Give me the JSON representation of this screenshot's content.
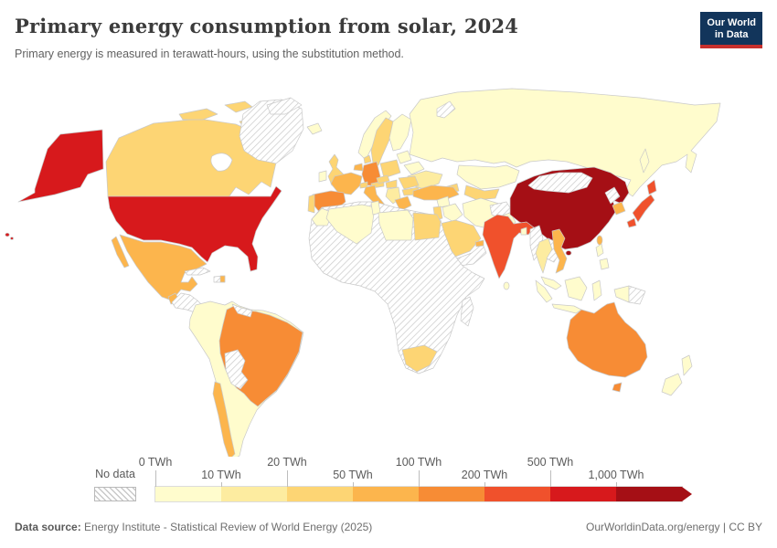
{
  "header": {
    "title": "Primary energy consumption from solar, 2024",
    "subtitle": "Primary energy is measured in terawatt-hours, using the substitution method.",
    "logo_line1": "Our World",
    "logo_line2": "in Data",
    "logo_bg": "#12355b",
    "logo_accent": "#c7302d"
  },
  "legend": {
    "no_data_label": "No data",
    "boundary_labels": [
      "0 TWh",
      "10 TWh",
      "20 TWh",
      "50 TWh",
      "100 TWh",
      "200 TWh",
      "500 TWh",
      "1,000 TWh"
    ],
    "bin_order": [
      "b0",
      "b10",
      "b20",
      "b50",
      "b100",
      "b200",
      "b500",
      "b1000"
    ],
    "bin_colors": {
      "b0": "#fffccd",
      "b10": "#fdeca0",
      "b20": "#fdd574",
      "b50": "#fcb54d",
      "b100": "#f78c35",
      "b200": "#f0512c",
      "b500": "#d7191c",
      "b1000": "#a50f15"
    }
  },
  "footer": {
    "source_prefix": "Data source:",
    "source_text": " Energy Institute - Statistical Review of World Energy (2025)",
    "link_text": "OurWorldinData.org/energy",
    "divider": " | ",
    "license": "CC BY"
  },
  "chart_data": {
    "type": "choropleth",
    "title": "Primary energy consumption from solar, 2024",
    "subtitle": "Primary energy is measured in terawatt-hours, using the substitution method.",
    "unit": "TWh",
    "legend_position": "bottom",
    "bins": [
      {
        "id": "b0",
        "range": "0-10 TWh",
        "color": "#fffccd"
      },
      {
        "id": "b10",
        "range": "10-20 TWh",
        "color": "#fdeca0"
      },
      {
        "id": "b20",
        "range": "20-50 TWh",
        "color": "#fdd574"
      },
      {
        "id": "b50",
        "range": "50-100 TWh",
        "color": "#fcb54d"
      },
      {
        "id": "b100",
        "range": "100-200 TWh",
        "color": "#f78c35"
      },
      {
        "id": "b200",
        "range": "200-500 TWh",
        "color": "#f0512c"
      },
      {
        "id": "b500",
        "range": "500-1,000 TWh",
        "color": "#d7191c"
      },
      {
        "id": "b1000",
        "range": "1,000+ TWh",
        "color": "#a50f15"
      },
      {
        "id": "nodata",
        "range": "No data",
        "color": "hatched"
      }
    ],
    "regions": {
      "alaska": "b500",
      "united-states": "b500",
      "hawaii": "b500",
      "canada": "b20",
      "arctic-islands-1": "b20",
      "arctic-islands-2": "b20",
      "arctic-islands-3": "b20",
      "greenland": "nodata",
      "svalbard": "nodata",
      "novaya-zemlya": "nodata",
      "mexico": "b50",
      "baja-california": "b50",
      "guatemala": "b50",
      "central-america": "nodata",
      "cuba": "nodata",
      "hispaniola": "nodata",
      "dominican-republic": "b50",
      "south-america": "b0",
      "brazil": "b100",
      "bolivia-paraguay": "nodata",
      "chile": "b50",
      "guyanas": "nodata",
      "iceland": "b0",
      "ireland": "b0",
      "united-kingdom": "b20",
      "norway": "b0",
      "sweden": "b20",
      "finland": "b0",
      "denmark": "b20",
      "france": "b50",
      "spain": "b100",
      "portugal": "b20",
      "germany": "b100",
      "benelux": "b50",
      "switzerland": "b20",
      "austria": "b20",
      "czechia": "b20",
      "poland": "b20",
      "italy": "b50",
      "baltics": "b0",
      "belarus": "b0",
      "ukraine": "b10",
      "hungary": "b20",
      "romania": "b20",
      "bulgaria": "b20",
      "balkans": "b10",
      "greece": "b50",
      "turkey": "b50",
      "russia": "b0",
      "sakhalin": "b0",
      "kazakhstan": "b0",
      "caucasus": "b20",
      "central-asia": "b20",
      "morocco": "b0",
      "algeria": "b0",
      "tunisia": "b0",
      "libya": "b0",
      "egypt": "b20",
      "africa": "nodata",
      "south-africa": "b20",
      "madagascar": "nodata",
      "syria": "b0",
      "iraq": "b0",
      "israel-jordan": "b20",
      "saudi-arabia": "b20",
      "yemen-oman": "nodata",
      "uae": "b50",
      "iran": "b0",
      "afghanistan": "nodata",
      "pakistan": "b0",
      "india": "b200",
      "sri-lanka": "b0",
      "bangladesh": "b0",
      "myanmar": "nodata",
      "thailand": "b10",
      "laos-cambodia": "nodata",
      "vietnam": "b50",
      "malaysia": "b0",
      "sumatra": "b0",
      "java": "b0",
      "borneo": "b0",
      "sulawesi": "b0",
      "new-guinea-west": "b0",
      "new-guinea-east": "nodata",
      "philippines-1": "b0",
      "philippines-2": "b0",
      "taiwan": "b50",
      "hainan": "b1000",
      "china": "b1000",
      "mongolia": "nodata",
      "north-korea": "nodata",
      "south-korea": "b50",
      "japan-hokkaido": "b200",
      "japan-honshu": "b200",
      "japan-kyushu": "b200",
      "australia": "b100",
      "tasmania": "b100",
      "new-zealand-north": "b0",
      "new-zealand-south": "b0"
    }
  }
}
